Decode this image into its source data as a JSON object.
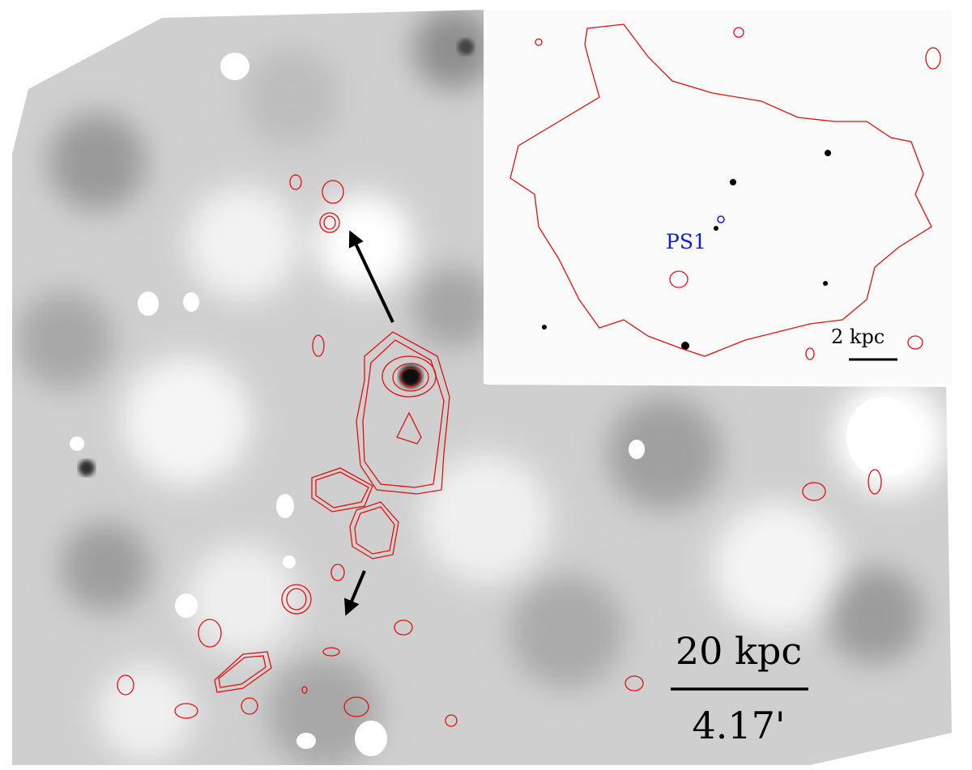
{
  "inset": {
    "source_label": "PS1",
    "scale_bar": "2 kpc"
  },
  "scale_bar": {
    "length": "20 kpc",
    "angle": "4.17'"
  }
}
